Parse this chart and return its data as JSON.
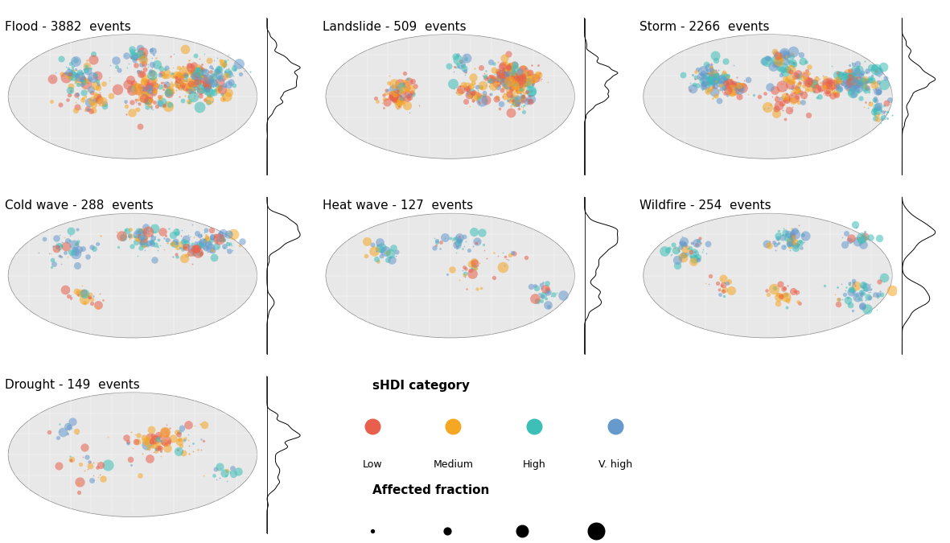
{
  "disasters": [
    {
      "name": "Flood",
      "events": 3882
    },
    {
      "name": "Landslide",
      "events": 509
    },
    {
      "name": "Storm",
      "events": 2266
    },
    {
      "name": "Cold wave",
      "events": 288
    },
    {
      "name": "Heat wave",
      "events": 127
    },
    {
      "name": "Wildfire",
      "events": 254
    },
    {
      "name": "Drought",
      "events": 149
    }
  ],
  "sHDI_colors": {
    "Low": "#E8604C",
    "Medium": "#F5A623",
    "High": "#3DBFB8",
    "V. high": "#6699CC"
  },
  "sHDI_labels": [
    "Low",
    "Medium",
    "High",
    "V. high"
  ],
  "title_fontsize": 11,
  "legend_title_fontsize": 11,
  "legend_fontsize": 9
}
